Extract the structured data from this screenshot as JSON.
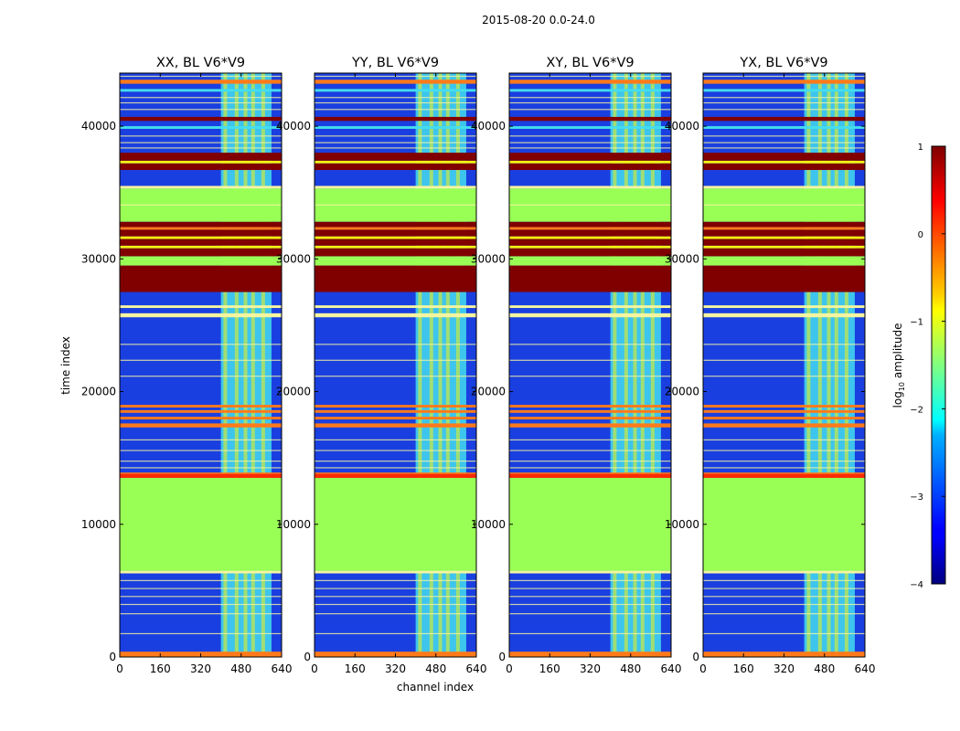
{
  "figure": {
    "suptitle": "2015-08-20 0.0-24.0",
    "ylabel": "time index",
    "xlabel": "channel index"
  },
  "colorbar": {
    "label_main": "log",
    "label_sub": "10",
    "label_rest": " amplitude",
    "range": [
      -4,
      1
    ],
    "ticks": [
      "1",
      "0",
      "−1",
      "−2",
      "−3",
      "−4"
    ],
    "tick_values": [
      1,
      0,
      -1,
      -2,
      -3,
      -4
    ],
    "colormap": "jet"
  },
  "colors": {
    "bg_blue": "#1a3fe0",
    "green": "#99ff55",
    "dark_red": "#800000",
    "cyan_band": "#44ddee",
    "orange": "#ff7a1a",
    "red": "#ff2a00",
    "yellow": "#f2f211",
    "white_band": "#f5f5a0"
  },
  "chart_data": [
    {
      "type": "heatmap",
      "title": "XX, BL V6*V9",
      "xlim": [
        0,
        640
      ],
      "ylim": [
        0,
        44000
      ],
      "xticks": [
        "0",
        "160",
        "320",
        "480",
        "640"
      ],
      "yticks": [
        "0",
        "10000",
        "20000",
        "30000",
        "40000"
      ],
      "colorscale": "log10 amplitude, -4 to 1",
      "rfi_channels": [
        400,
        600
      ]
    },
    {
      "type": "heatmap",
      "title": "YY, BL V6*V9",
      "xlim": [
        0,
        640
      ],
      "ylim": [
        0,
        44000
      ],
      "xticks": [
        "0",
        "160",
        "320",
        "480",
        "640"
      ],
      "yticks": [
        "0",
        "10000",
        "20000",
        "30000",
        "40000"
      ],
      "colorscale": "log10 amplitude, -4 to 1",
      "rfi_channels": [
        400,
        600
      ]
    },
    {
      "type": "heatmap",
      "title": "XY, BL V6*V9",
      "xlim": [
        0,
        640
      ],
      "ylim": [
        0,
        44000
      ],
      "xticks": [
        "0",
        "160",
        "320",
        "480",
        "640"
      ],
      "yticks": [
        "0",
        "10000",
        "20000",
        "30000",
        "40000"
      ],
      "colorscale": "log10 amplitude, -4 to 1",
      "rfi_channels": [
        400,
        600
      ]
    },
    {
      "type": "heatmap",
      "title": "YX, BL V6*V9",
      "xlim": [
        0,
        640
      ],
      "ylim": [
        0,
        44000
      ],
      "xticks": [
        "0",
        "160",
        "320",
        "480",
        "640"
      ],
      "yticks": [
        "0",
        "10000",
        "20000",
        "30000",
        "40000"
      ],
      "colorscale": "log10 amplitude, -4 to 1",
      "rfi_channels": [
        400,
        600
      ]
    }
  ]
}
